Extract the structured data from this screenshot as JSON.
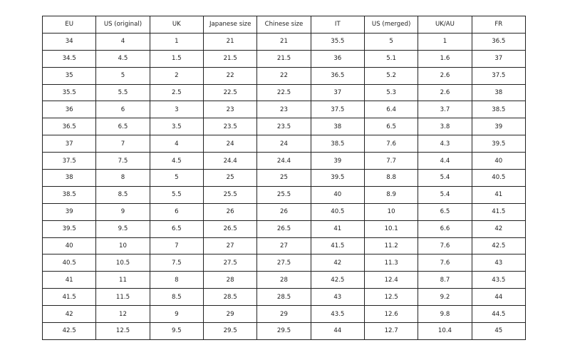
{
  "table": {
    "headers": [
      "EU",
      "US (original)",
      "UK",
      "Japanese size",
      "Chinese size",
      "IT",
      "US (merged)",
      "UK/AU",
      "FR"
    ],
    "rows": [
      [
        "34",
        "4",
        "1",
        "21",
        "21",
        "35.5",
        "5",
        "1",
        "36.5"
      ],
      [
        "34.5",
        "4.5",
        "1.5",
        "21.5",
        "21.5",
        "36",
        "5.1",
        "1.6",
        "37"
      ],
      [
        "35",
        "5",
        "2",
        "22",
        "22",
        "36.5",
        "5.2",
        "2.6",
        "37.5"
      ],
      [
        "35.5",
        "5.5",
        "2.5",
        "22.5",
        "22.5",
        "37",
        "5.3",
        "2.6",
        "38"
      ],
      [
        "36",
        "6",
        "3",
        "23",
        "23",
        "37.5",
        "6.4",
        "3.7",
        "38.5"
      ],
      [
        "36.5",
        "6.5",
        "3.5",
        "23.5",
        "23.5",
        "38",
        "6.5",
        "3.8",
        "39"
      ],
      [
        "37",
        "7",
        "4",
        "24",
        "24",
        "38.5",
        "7.6",
        "4.3",
        "39.5"
      ],
      [
        "37.5",
        "7.5",
        "4.5",
        "24.4",
        "24.4",
        "39",
        "7.7",
        "4.4",
        "40"
      ],
      [
        "38",
        "8",
        "5",
        "25",
        "25",
        "39.5",
        "8.8",
        "5.4",
        "40.5"
      ],
      [
        "38.5",
        "8.5",
        "5.5",
        "25.5",
        "25.5",
        "40",
        "8.9",
        "5.4",
        "41"
      ],
      [
        "39",
        "9",
        "6",
        "26",
        "26",
        "40.5",
        "10",
        "6.5",
        "41.5"
      ],
      [
        "39.5",
        "9.5",
        "6.5",
        "26.5",
        "26.5",
        "41",
        "10.1",
        "6.6",
        "42"
      ],
      [
        "40",
        "10",
        "7",
        "27",
        "27",
        "41.5",
        "11.2",
        "7.6",
        "42.5"
      ],
      [
        "40.5",
        "10.5",
        "7.5",
        "27.5",
        "27.5",
        "42",
        "11.3",
        "7.6",
        "43"
      ],
      [
        "41",
        "11",
        "8",
        "28",
        "28",
        "42.5",
        "12.4",
        "8.7",
        "43.5"
      ],
      [
        "41.5",
        "11.5",
        "8.5",
        "28.5",
        "28.5",
        "43",
        "12.5",
        "9.2",
        "44"
      ],
      [
        "42",
        "12",
        "9",
        "29",
        "29",
        "43.5",
        "12.6",
        "9.8",
        "44.5"
      ],
      [
        "42.5",
        "12.5",
        "9.5",
        "29.5",
        "29.5",
        "44",
        "12.7",
        "10.4",
        "45"
      ]
    ]
  }
}
